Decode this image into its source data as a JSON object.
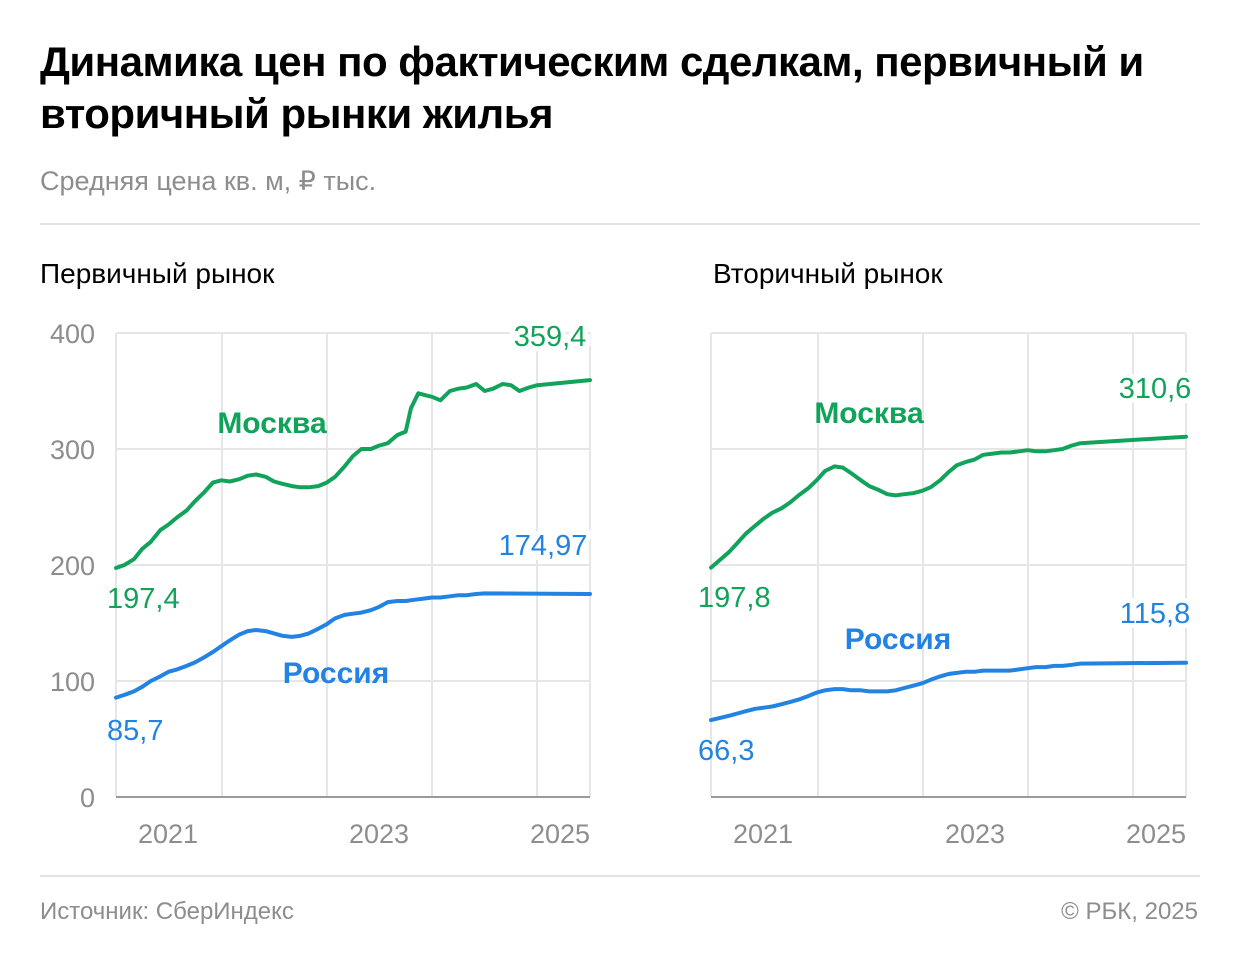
{
  "header": {
    "title": "Динамика цен по фактическим сделкам, первичный и вторичный рынки жилья",
    "subtitle": "Средняя цена кв. м, ₽ тыс."
  },
  "footer": {
    "source": "Источник: СберИндекс",
    "copyright": "© РБК, 2025"
  },
  "colors": {
    "moscow": "#12a35b",
    "russia": "#2283e2",
    "grid": "#e6e6e6",
    "axis": "#9a9a9a"
  },
  "chart_data": [
    {
      "type": "line",
      "title": "Первичный рынок",
      "x_range": [
        2020.0,
        2024.5
      ],
      "ylim": [
        0,
        400
      ],
      "y_ticks": [
        "0",
        "100",
        "200",
        "300",
        "400"
      ],
      "x_tick_labels": [
        "2021",
        "2023",
        "2025"
      ],
      "series": [
        {
          "name": "Москва",
          "color": "#12a35b",
          "start_label": "197,4",
          "end_label": "359,4",
          "points": [
            [
              2020.0,
              197.4
            ],
            [
              2020.08,
              200
            ],
            [
              2020.17,
              205
            ],
            [
              2020.25,
              214
            ],
            [
              2020.33,
              220
            ],
            [
              2020.42,
              230
            ],
            [
              2020.5,
              235
            ],
            [
              2020.58,
              241
            ],
            [
              2020.67,
              247
            ],
            [
              2020.75,
              255
            ],
            [
              2020.83,
              262
            ],
            [
              2020.92,
              271
            ],
            [
              2021.0,
              273
            ],
            [
              2021.08,
              272
            ],
            [
              2021.17,
              274
            ],
            [
              2021.25,
              277
            ],
            [
              2021.33,
              278
            ],
            [
              2021.42,
              276
            ],
            [
              2021.5,
              272
            ],
            [
              2021.58,
              270
            ],
            [
              2021.67,
              268
            ],
            [
              2021.75,
              267
            ],
            [
              2021.83,
              267
            ],
            [
              2021.92,
              268
            ],
            [
              2022.0,
              271
            ],
            [
              2022.08,
              276
            ],
            [
              2022.17,
              285
            ],
            [
              2022.25,
              294
            ],
            [
              2022.33,
              300
            ],
            [
              2022.42,
              300
            ],
            [
              2022.5,
              303
            ],
            [
              2022.58,
              305
            ],
            [
              2022.67,
              312
            ],
            [
              2022.75,
              315
            ],
            [
              2022.8,
              335
            ],
            [
              2022.87,
              348
            ],
            [
              2022.95,
              346
            ],
            [
              2023.0,
              345
            ],
            [
              2023.08,
              342
            ],
            [
              2023.17,
              350
            ],
            [
              2023.25,
              352
            ],
            [
              2023.33,
              353
            ],
            [
              2023.42,
              356
            ],
            [
              2023.5,
              350
            ],
            [
              2023.58,
              352
            ],
            [
              2023.67,
              356
            ],
            [
              2023.75,
              355
            ],
            [
              2023.83,
              350
            ],
            [
              2023.92,
              353
            ],
            [
              2024.0,
              355
            ],
            [
              2024.5,
              359.4
            ]
          ]
        },
        {
          "name": "Россия",
          "color": "#2283e2",
          "start_label": "85,7",
          "end_label": "174,97",
          "points": [
            [
              2020.0,
              85.7
            ],
            [
              2020.08,
              88
            ],
            [
              2020.17,
              91
            ],
            [
              2020.25,
              95
            ],
            [
              2020.33,
              100
            ],
            [
              2020.42,
              104
            ],
            [
              2020.5,
              108
            ],
            [
              2020.58,
              110
            ],
            [
              2020.67,
              113
            ],
            [
              2020.75,
              116
            ],
            [
              2020.83,
              120
            ],
            [
              2020.92,
              125
            ],
            [
              2021.0,
              130
            ],
            [
              2021.08,
              135
            ],
            [
              2021.17,
              140
            ],
            [
              2021.25,
              143
            ],
            [
              2021.33,
              144
            ],
            [
              2021.42,
              143
            ],
            [
              2021.5,
              141
            ],
            [
              2021.58,
              139
            ],
            [
              2021.67,
              138
            ],
            [
              2021.75,
              139
            ],
            [
              2021.83,
              141
            ],
            [
              2021.92,
              145
            ],
            [
              2022.0,
              149
            ],
            [
              2022.08,
              154
            ],
            [
              2022.17,
              157
            ],
            [
              2022.25,
              158
            ],
            [
              2022.33,
              159
            ],
            [
              2022.42,
              161
            ],
            [
              2022.5,
              164
            ],
            [
              2022.58,
              168
            ],
            [
              2022.67,
              169
            ],
            [
              2022.75,
              169
            ],
            [
              2022.83,
              170
            ],
            [
              2022.92,
              171
            ],
            [
              2023.0,
              172
            ],
            [
              2023.08,
              172
            ],
            [
              2023.17,
              173
            ],
            [
              2023.25,
              174
            ],
            [
              2023.33,
              174
            ],
            [
              2023.42,
              175
            ],
            [
              2023.5,
              175.5
            ],
            [
              2024.5,
              174.97
            ]
          ]
        }
      ]
    },
    {
      "type": "line",
      "title": "Вторичный рынок",
      "x_range": [
        2020.0,
        2024.5
      ],
      "ylim": [
        0,
        400
      ],
      "y_ticks": [
        "0",
        "100",
        "200",
        "300",
        "400"
      ],
      "x_tick_labels": [
        "2021",
        "2023",
        "2025"
      ],
      "series": [
        {
          "name": "Москва",
          "color": "#12a35b",
          "start_label": "197,8",
          "end_label": "310,6",
          "points": [
            [
              2020.0,
              197.8
            ],
            [
              2020.08,
              204
            ],
            [
              2020.17,
              211
            ],
            [
              2020.25,
              219
            ],
            [
              2020.33,
              227
            ],
            [
              2020.42,
              234
            ],
            [
              2020.5,
              240
            ],
            [
              2020.58,
              245
            ],
            [
              2020.67,
              249
            ],
            [
              2020.75,
              254
            ],
            [
              2020.83,
              260
            ],
            [
              2020.92,
              266
            ],
            [
              2021.0,
              273
            ],
            [
              2021.08,
              281
            ],
            [
              2021.17,
              285
            ],
            [
              2021.25,
              284
            ],
            [
              2021.33,
              279
            ],
            [
              2021.42,
              273
            ],
            [
              2021.5,
              268
            ],
            [
              2021.58,
              265
            ],
            [
              2021.67,
              261
            ],
            [
              2021.75,
              260
            ],
            [
              2021.83,
              261
            ],
            [
              2021.92,
              262
            ],
            [
              2022.0,
              264
            ],
            [
              2022.08,
              267
            ],
            [
              2022.17,
              273
            ],
            [
              2022.25,
              280
            ],
            [
              2022.33,
              286
            ],
            [
              2022.42,
              289
            ],
            [
              2022.5,
              291
            ],
            [
              2022.58,
              295
            ],
            [
              2022.67,
              296
            ],
            [
              2022.75,
              297
            ],
            [
              2022.83,
              297
            ],
            [
              2022.92,
              298
            ],
            [
              2023.0,
              299
            ],
            [
              2023.08,
              298
            ],
            [
              2023.17,
              298
            ],
            [
              2023.25,
              299
            ],
            [
              2023.33,
              300
            ],
            [
              2023.42,
              303
            ],
            [
              2023.5,
              305
            ],
            [
              2024.5,
              310.6
            ]
          ]
        },
        {
          "name": "Россия",
          "color": "#2283e2",
          "start_label": "66,3",
          "end_label": "115,8",
          "points": [
            [
              2020.0,
              66.3
            ],
            [
              2020.08,
              68
            ],
            [
              2020.17,
              70
            ],
            [
              2020.25,
              72
            ],
            [
              2020.33,
              74
            ],
            [
              2020.42,
              76
            ],
            [
              2020.5,
              77
            ],
            [
              2020.58,
              78
            ],
            [
              2020.67,
              80
            ],
            [
              2020.75,
              82
            ],
            [
              2020.83,
              84
            ],
            [
              2020.92,
              87
            ],
            [
              2021.0,
              90
            ],
            [
              2021.08,
              92
            ],
            [
              2021.17,
              93
            ],
            [
              2021.25,
              93
            ],
            [
              2021.33,
              92
            ],
            [
              2021.42,
              92
            ],
            [
              2021.5,
              91
            ],
            [
              2021.58,
              91
            ],
            [
              2021.67,
              91
            ],
            [
              2021.75,
              92
            ],
            [
              2021.83,
              94
            ],
            [
              2021.92,
              96
            ],
            [
              2022.0,
              98
            ],
            [
              2022.08,
              101
            ],
            [
              2022.17,
              104
            ],
            [
              2022.25,
              106
            ],
            [
              2022.33,
              107
            ],
            [
              2022.42,
              108
            ],
            [
              2022.5,
              108
            ],
            [
              2022.58,
              109
            ],
            [
              2022.67,
              109
            ],
            [
              2022.75,
              109
            ],
            [
              2022.83,
              109
            ],
            [
              2022.92,
              110
            ],
            [
              2023.0,
              111
            ],
            [
              2023.08,
              112
            ],
            [
              2023.17,
              112
            ],
            [
              2023.25,
              113
            ],
            [
              2023.33,
              113
            ],
            [
              2023.42,
              114
            ],
            [
              2023.5,
              115
            ],
            [
              2024.5,
              115.8
            ]
          ]
        }
      ]
    }
  ]
}
